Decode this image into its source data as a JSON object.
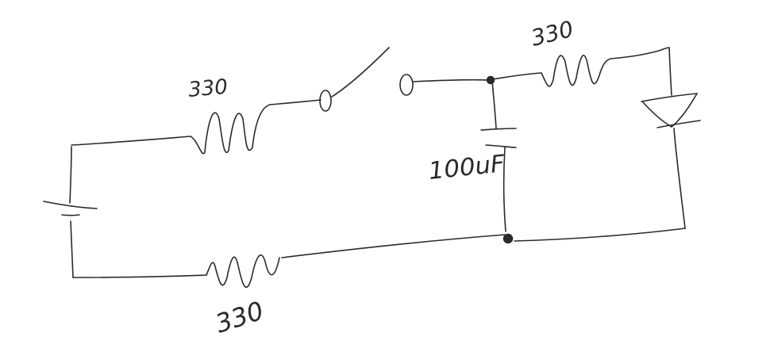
{
  "diagram": {
    "type": "hand-drawn circuit schematic",
    "stroke_color": "#2a2a2a",
    "background_color": "#ffffff",
    "labels": {
      "resistor_top_left": "330",
      "resistor_top_right": "330",
      "resistor_bottom": "330",
      "capacitor": "100uF"
    }
  }
}
